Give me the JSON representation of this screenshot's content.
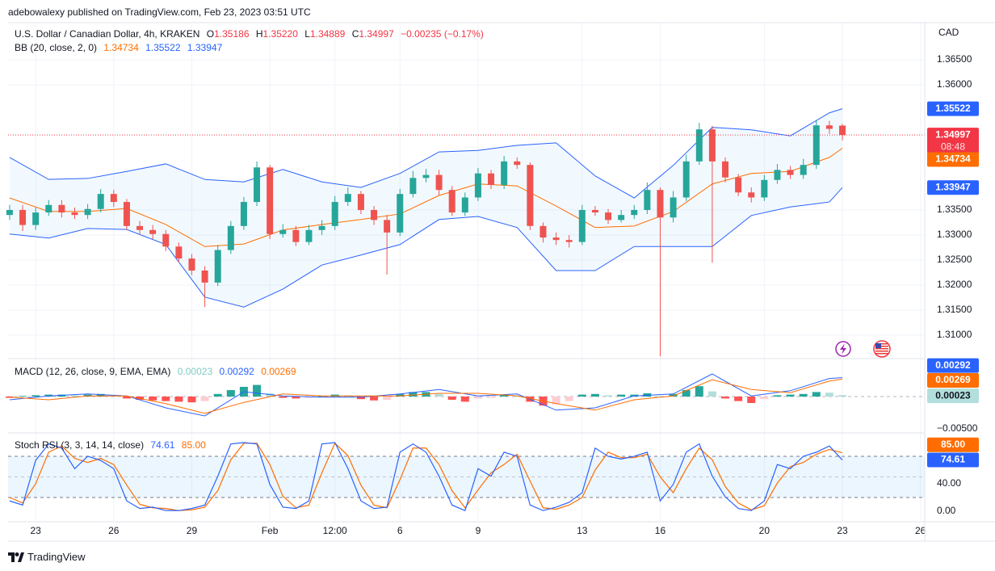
{
  "header": {
    "published": "adebowalexy published on TradingView.com, Feb 23, 2023 03:51 UTC",
    "footer": "TradingView"
  },
  "chart_data": [
    {
      "type": "candlestick",
      "title": "U.S. Dollar / Canadian Dollar, 4h, KRAKEN",
      "ohlc_labels": [
        "O",
        "H",
        "L",
        "C"
      ],
      "ohlc_values": [
        "1.35186",
        "1.35220",
        "1.34889",
        "1.34997"
      ],
      "change": "−0.00235 (−0.17%)",
      "unit": "CAD",
      "countdown": "08:48",
      "up_color": "#26a69a",
      "down_color": "#ef5350",
      "price_line_color": "#f23645",
      "x": [
        0,
        1,
        2,
        3,
        4,
        5,
        6,
        7,
        8,
        9,
        10,
        11,
        12,
        13,
        14,
        15,
        16,
        17,
        18,
        19,
        20,
        21,
        22,
        23,
        24,
        25,
        26,
        27,
        28,
        29,
        30,
        31,
        32,
        33,
        34,
        35,
        36,
        37,
        38,
        39,
        40,
        41,
        42,
        43,
        44,
        45,
        46,
        47,
        48,
        49,
        50,
        51,
        52,
        53,
        54,
        55,
        56,
        57,
        58,
        59,
        60,
        61,
        62,
        63,
        64
      ],
      "open": [
        1.334,
        1.335,
        1.332,
        1.3345,
        1.336,
        1.3345,
        1.334,
        1.3352,
        1.3382,
        1.3366,
        1.3318,
        1.331,
        1.3302,
        1.3277,
        1.3253,
        1.3229,
        1.3205,
        1.327,
        1.3318,
        1.3366,
        1.3435,
        1.3302,
        1.331,
        1.3286,
        1.331,
        1.3318,
        1.3366,
        1.3382,
        1.335,
        1.333,
        1.3305,
        1.3382,
        1.3414,
        1.342,
        1.339,
        1.3345,
        1.3375,
        1.3423,
        1.34,
        1.3447,
        1.344,
        1.3318,
        1.3295,
        1.329,
        1.3286,
        1.335,
        1.3345,
        1.333,
        1.334,
        1.335,
        1.339,
        1.3335,
        1.3375,
        1.3447,
        1.3511,
        1.3447,
        1.3415,
        1.3385,
        1.3375,
        1.341,
        1.343,
        1.342,
        1.344,
        1.3519,
        1.35186
      ],
      "high": [
        1.336,
        1.336,
        1.3355,
        1.337,
        1.337,
        1.3355,
        1.3362,
        1.3392,
        1.339,
        1.3372,
        1.3328,
        1.332,
        1.331,
        1.3285,
        1.3262,
        1.3238,
        1.328,
        1.3328,
        1.3376,
        1.3447,
        1.344,
        1.3322,
        1.3318,
        1.332,
        1.333,
        1.3378,
        1.3395,
        1.3388,
        1.3358,
        1.334,
        1.3392,
        1.3428,
        1.3432,
        1.343,
        1.3398,
        1.3385,
        1.3434,
        1.343,
        1.3458,
        1.3455,
        1.3445,
        1.3325,
        1.3305,
        1.33,
        1.336,
        1.3358,
        1.3352,
        1.335,
        1.336,
        1.3405,
        1.3395,
        1.3388,
        1.346,
        1.3524,
        1.3518,
        1.3455,
        1.3422,
        1.3395,
        1.342,
        1.3442,
        1.3438,
        1.3452,
        1.353,
        1.3528,
        1.3522
      ],
      "low": [
        1.333,
        1.3308,
        1.331,
        1.3338,
        1.3335,
        1.3332,
        1.3332,
        1.3345,
        1.3356,
        1.331,
        1.33,
        1.3292,
        1.3268,
        1.3245,
        1.322,
        1.3156,
        1.3198,
        1.3262,
        1.331,
        1.3358,
        1.3292,
        1.3295,
        1.3278,
        1.328,
        1.33,
        1.331,
        1.3358,
        1.3342,
        1.332,
        1.3221,
        1.3298,
        1.3375,
        1.3405,
        1.338,
        1.3338,
        1.3338,
        1.3368,
        1.3392,
        1.3392,
        1.3432,
        1.331,
        1.3285,
        1.328,
        1.3275,
        1.328,
        1.3338,
        1.3322,
        1.3325,
        1.3332,
        1.3342,
        1.3058,
        1.3325,
        1.3368,
        1.344,
        1.3245,
        1.3405,
        1.3378,
        1.3365,
        1.3368,
        1.3402,
        1.3412,
        1.3412,
        1.3432,
        1.3502,
        1.34889
      ],
      "close": [
        1.335,
        1.332,
        1.3345,
        1.336,
        1.3345,
        1.334,
        1.3352,
        1.3382,
        1.3366,
        1.3318,
        1.331,
        1.3302,
        1.3277,
        1.3253,
        1.3229,
        1.3205,
        1.327,
        1.3318,
        1.3366,
        1.3435,
        1.3302,
        1.331,
        1.3286,
        1.331,
        1.3318,
        1.3366,
        1.3382,
        1.335,
        1.333,
        1.3305,
        1.3382,
        1.3414,
        1.342,
        1.339,
        1.3345,
        1.3375,
        1.3423,
        1.34,
        1.3447,
        1.344,
        1.3318,
        1.3295,
        1.329,
        1.3286,
        1.335,
        1.3345,
        1.333,
        1.334,
        1.335,
        1.339,
        1.3335,
        1.3375,
        1.3447,
        1.3511,
        1.3447,
        1.3415,
        1.3385,
        1.3375,
        1.341,
        1.343,
        1.342,
        1.344,
        1.3519,
        1.3512,
        1.34997
      ],
      "bb": {
        "label": "BB (20, close, 2, 0)",
        "fill": "rgba(33,150,243,0.06)",
        "x": [
          0,
          3,
          6,
          9,
          12,
          15,
          18,
          21,
          24,
          27,
          30,
          33,
          36,
          39,
          42,
          45,
          48,
          51,
          54,
          57,
          60,
          63,
          64
        ],
        "basis": {
          "color": "#ff6d00",
          "values": [
            1.3374,
            1.3347,
            1.3347,
            1.3353,
            1.3321,
            1.3277,
            1.3282,
            1.331,
            1.3321,
            1.3331,
            1.3342,
            1.3379,
            1.3402,
            1.3398,
            1.3358,
            1.3315,
            1.3318,
            1.3347,
            1.3402,
            1.3423,
            1.3427,
            1.3455,
            1.34734
          ]
        },
        "upper": {
          "color": "#2962ff",
          "values": [
            1.3455,
            1.3411,
            1.3413,
            1.3427,
            1.3442,
            1.3411,
            1.3406,
            1.3431,
            1.3406,
            1.3395,
            1.3423,
            1.3466,
            1.3469,
            1.3479,
            1.3484,
            1.3418,
            1.3374,
            1.3439,
            1.3515,
            1.351,
            1.3498,
            1.3544,
            1.35522
          ]
        },
        "lower": {
          "color": "#2962ff",
          "values": [
            1.3302,
            1.3294,
            1.3313,
            1.3311,
            1.3281,
            1.3176,
            1.3156,
            1.3192,
            1.324,
            1.326,
            1.3281,
            1.3331,
            1.3337,
            1.3315,
            1.3229,
            1.3229,
            1.3277,
            1.3277,
            1.3277,
            1.3339,
            1.3356,
            1.3366,
            1.33947
          ]
        }
      },
      "xlim": [
        -0.12,
        70.33
      ],
      "xticks": [
        {
          "value": 2,
          "label": "23"
        },
        {
          "value": 8,
          "label": "26"
        },
        {
          "value": 14,
          "label": "29"
        },
        {
          "value": 20,
          "label": "Feb"
        },
        {
          "value": 25,
          "label": "12:00"
        },
        {
          "value": 30,
          "label": "6"
        },
        {
          "value": 36,
          "label": "9"
        },
        {
          "value": 44,
          "label": "13"
        },
        {
          "value": 50,
          "label": "16"
        },
        {
          "value": 58,
          "label": "20"
        },
        {
          "value": 64,
          "label": "23"
        },
        {
          "value": 70,
          "label": "26"
        }
      ],
      "ylim": [
        1.30548,
        1.37242
      ],
      "yticks": [
        {
          "value": 1.365,
          "label": "1.36500"
        },
        {
          "value": 1.36,
          "label": "1.36000"
        },
        {
          "value": 1.335,
          "label": "1.33500"
        },
        {
          "value": 1.33,
          "label": "1.33000"
        },
        {
          "value": 1.325,
          "label": "1.32500"
        },
        {
          "value": 1.32,
          "label": "1.32000"
        },
        {
          "value": 1.315,
          "label": "1.31500"
        },
        {
          "value": 1.31,
          "label": "1.31000"
        }
      ],
      "grid": true
    },
    {
      "type": "macd",
      "title": "MACD (12, 26, close, 9, EMA, EMA)",
      "histogram": {
        "colors": [
          "#26a69a",
          "#b2dfdb",
          "#ffcdd2",
          "#ff5252"
        ],
        "x": [
          0,
          1,
          2,
          3,
          4,
          5,
          6,
          7,
          8,
          9,
          10,
          11,
          12,
          13,
          14,
          15,
          16,
          17,
          18,
          19,
          20,
          21,
          22,
          23,
          24,
          25,
          26,
          27,
          28,
          29,
          30,
          31,
          32,
          33,
          34,
          35,
          36,
          37,
          38,
          39,
          40,
          41,
          42,
          43,
          44,
          45,
          46,
          47,
          48,
          49,
          50,
          51,
          52,
          53,
          54,
          55,
          56,
          57,
          58,
          59,
          60,
          61,
          62,
          63,
          64
        ],
        "values": [
          -0.0002,
          0.0001,
          0.0002,
          0.0003,
          0.0003,
          0.0002,
          0.0003,
          0.0004,
          0.0002,
          -0.0003,
          -0.0005,
          -0.0006,
          -0.0007,
          -0.0008,
          -0.0009,
          -0.0007,
          0.0004,
          0.001,
          0.0015,
          0.0018,
          0.0005,
          -0.0002,
          -0.0003,
          -0.0002,
          0.0001,
          0.0003,
          0.0002,
          -0.0004,
          -0.0006,
          -0.0005,
          0.0004,
          0.0007,
          0.0007,
          0.0004,
          -0.0005,
          -0.0008,
          -0.0003,
          -0.0002,
          0.0003,
          0.0002,
          -0.0008,
          -0.0014,
          -0.0012,
          -0.0007,
          0.0003,
          0.0004,
          0.0002,
          0.0003,
          0.0003,
          0.0005,
          0.0001,
          0.0004,
          0.001,
          0.0016,
          0.0008,
          -0.0003,
          -0.0007,
          -0.001,
          -0.0004,
          0.0002,
          0.0003,
          0.0004,
          0.0007,
          0.0006,
          0.00023
        ]
      },
      "series": [
        {
          "color": "#2962ff",
          "x": [
            0,
            3,
            6,
            9,
            12,
            15,
            18,
            21,
            24,
            27,
            30,
            33,
            36,
            39,
            42,
            45,
            48,
            51,
            54,
            57,
            60,
            63,
            64
          ],
          "values": [
            -0.0005,
            0.0001,
            0.0004,
            0.0001,
            -0.00175,
            -0.003,
            0.00075,
            0.0001,
            -0.0001,
            -0.0001,
            0.0004,
            0.0011,
            0.0001,
            0.0004,
            -0.0021,
            -0.00175,
            0.0001,
            0.0004,
            0.0035,
            0.0001,
            0.0009,
            0.0028,
            0.00292
          ]
        },
        {
          "color": "#ff6d00",
          "x": [
            0,
            3,
            6,
            9,
            12,
            15,
            18,
            21,
            24,
            27,
            30,
            33,
            36,
            39,
            42,
            45,
            48,
            51,
            54,
            57,
            60,
            63,
            64
          ],
          "values": [
            -0.0001,
            -0.0005,
            0.0001,
            0.0001,
            -0.0011,
            -0.0026,
            -0.0009,
            0.0004,
            0.0001,
            0.0001,
            0.0001,
            0.0005,
            0.0005,
            0.0001,
            -0.0011,
            -0.0021,
            -0.0005,
            0.0001,
            0.0026,
            0.0011,
            0.0006,
            0.0024,
            0.00269
          ]
        }
      ],
      "baseline": 0,
      "ylim": [
        -0.0055,
        0.00575
      ],
      "yticks": [
        {
          "value": -0.005,
          "label": "−0.00500"
        }
      ]
    },
    {
      "type": "stoch_rsi",
      "title": "Stoch RSI (3, 3, 14, 14, close)",
      "series": [
        {
          "color": "#2962ff",
          "x": [
            0,
            1,
            2,
            3,
            4,
            5,
            6,
            7,
            8,
            9,
            10,
            11,
            12,
            13,
            14,
            15,
            16,
            17,
            18,
            19,
            20,
            21,
            22,
            23,
            24,
            25,
            26,
            27,
            28,
            29,
            30,
            31,
            32,
            33,
            34,
            35,
            36,
            37,
            38,
            39,
            40,
            41,
            42,
            43,
            44,
            45,
            46,
            47,
            48,
            49,
            50,
            51,
            52,
            53,
            54,
            55,
            56,
            57,
            58,
            59,
            60,
            61,
            62,
            63,
            64
          ],
          "values": [
            15,
            9,
            74,
            98,
            92,
            62,
            80,
            74,
            62,
            15,
            4,
            6,
            1,
            1,
            4,
            9,
            51,
            98,
            100,
            98,
            39,
            6,
            4,
            15,
            98,
            100,
            62,
            15,
            4,
            6,
            86,
            98,
            86,
            51,
            9,
            1,
            62,
            51,
            86,
            80,
            9,
            1,
            6,
            13,
            27,
            92,
            80,
            76,
            80,
            86,
            15,
            39,
            86,
            98,
            51,
            21,
            4,
            1,
            15,
            68,
            62,
            80,
            86,
            95,
            74.61
          ]
        },
        {
          "color": "#ff6d00",
          "value_label": "85.00",
          "x": [
            0,
            1,
            2,
            3,
            4,
            5,
            6,
            7,
            8,
            9,
            10,
            11,
            12,
            13,
            14,
            15,
            16,
            17,
            18,
            19,
            20,
            21,
            22,
            23,
            24,
            25,
            26,
            27,
            28,
            29,
            30,
            31,
            32,
            33,
            34,
            35,
            36,
            37,
            38,
            39,
            40,
            41,
            42,
            43,
            44,
            45,
            46,
            47,
            48,
            49,
            50,
            51,
            52,
            53,
            54,
            55,
            56,
            57,
            58,
            59,
            60,
            61,
            62,
            63,
            64
          ],
          "values": [
            20,
            12,
            40,
            86,
            95,
            77,
            71,
            77,
            68,
            38,
            10,
            5,
            4,
            1,
            2,
            6,
            30,
            75,
            99,
            99,
            68,
            22,
            5,
            9,
            56,
            99,
            81,
            38,
            9,
            5,
            46,
            92,
            92,
            68,
            30,
            5,
            31,
            56,
            68,
            83,
            44,
            5,
            3,
            9,
            20,
            60,
            86,
            78,
            78,
            83,
            50,
            27,
            62,
            92,
            75,
            36,
            12,
            2,
            8,
            41,
            65,
            71,
            83,
            90,
            85
          ]
        }
      ],
      "levels": [
        80,
        50,
        20
      ],
      "band_fill": "rgba(33,150,243,0.09)",
      "ylim": [
        -14.1,
        112.9
      ],
      "yticks": [
        {
          "value": 40,
          "label": "40.00"
        },
        {
          "value": 0,
          "label": "0.00"
        }
      ]
    }
  ]
}
